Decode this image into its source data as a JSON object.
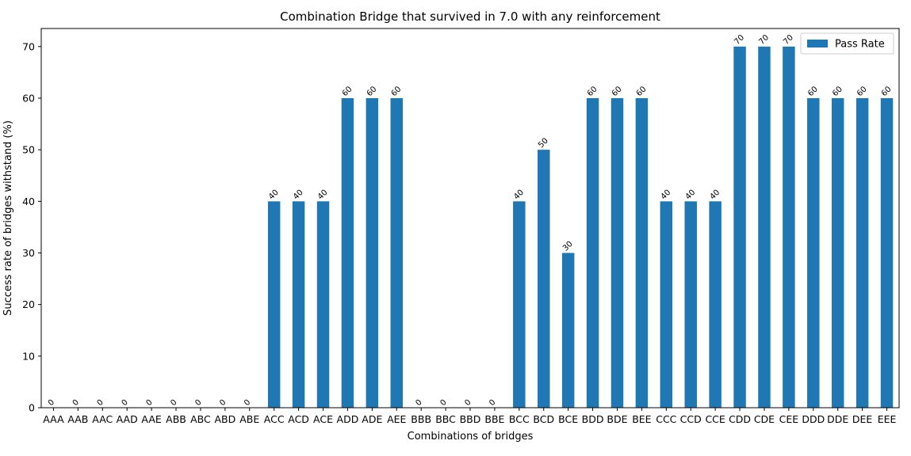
{
  "chart_data": {
    "type": "bar",
    "title": "Combination Bridge that survived in 7.0 with any reinforcement",
    "xlabel": "Combinations of bridges",
    "ylabel": "Success rate of bridges withstand (%)",
    "categories": [
      "AAA",
      "AAB",
      "AAC",
      "AAD",
      "AAE",
      "ABB",
      "ABC",
      "ABD",
      "ABE",
      "ACC",
      "ACD",
      "ACE",
      "ADD",
      "ADE",
      "AEE",
      "BBB",
      "BBC",
      "BBD",
      "BBE",
      "BCC",
      "BCD",
      "BCE",
      "BDD",
      "BDE",
      "BEE",
      "CCC",
      "CCD",
      "CCE",
      "CDD",
      "CDE",
      "CEE",
      "DDD",
      "DDE",
      "DEE",
      "EEE"
    ],
    "series": [
      {
        "name": "Pass Rate",
        "color": "#1f77b4",
        "values": [
          0,
          0,
          0,
          0,
          0,
          0,
          0,
          0,
          0,
          40,
          40,
          40,
          60,
          60,
          60,
          0,
          0,
          0,
          0,
          40,
          50,
          30,
          60,
          60,
          60,
          40,
          40,
          40,
          70,
          70,
          70,
          60,
          60,
          60,
          60
        ]
      }
    ],
    "ylim": [
      0,
      73.5
    ],
    "yticks": [
      0,
      10,
      20,
      30,
      40,
      50,
      60,
      70
    ],
    "grid": false,
    "legend": "top-right",
    "data_labels": true
  }
}
